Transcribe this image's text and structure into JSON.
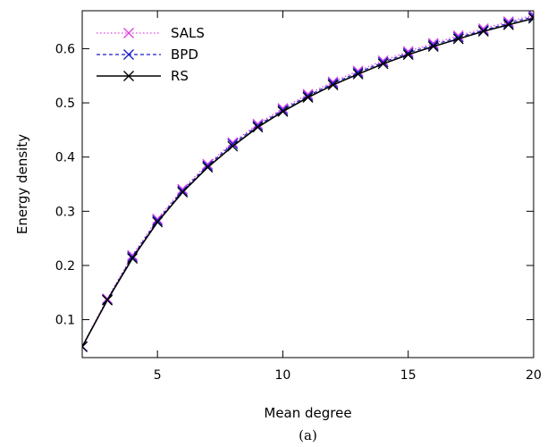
{
  "chart_data": {
    "type": "line",
    "title": "",
    "xlabel": "Mean degree",
    "ylabel": "Energy density",
    "caption": "(a)",
    "xlim": [
      2,
      20
    ],
    "ylim": [
      0.03,
      0.67
    ],
    "x_ticks": [
      5,
      10,
      15,
      20
    ],
    "y_ticks": [
      0.1,
      0.2,
      0.3,
      0.4,
      0.5,
      0.6
    ],
    "grid": false,
    "legend_position": "top-left",
    "x": [
      2,
      3,
      4,
      5,
      6,
      7,
      8,
      9,
      10,
      11,
      12,
      13,
      14,
      15,
      16,
      17,
      18,
      19,
      20
    ],
    "series": [
      {
        "name": "SALS",
        "color": "#e040e0",
        "line_style": "dotted",
        "marker": "x",
        "values": [
          0.051,
          0.139,
          0.219,
          0.286,
          0.341,
          0.387,
          0.427,
          0.461,
          0.49,
          0.516,
          0.539,
          0.559,
          0.578,
          0.595,
          0.61,
          0.624,
          0.637,
          0.65,
          0.662
        ]
      },
      {
        "name": "BPD",
        "color": "#1a1acc",
        "line_style": "dashed",
        "marker": "x",
        "values": [
          0.05,
          0.137,
          0.216,
          0.283,
          0.338,
          0.384,
          0.424,
          0.458,
          0.487,
          0.513,
          0.536,
          0.556,
          0.575,
          0.592,
          0.607,
          0.621,
          0.634,
          0.647,
          0.659
        ]
      },
      {
        "name": "RS",
        "color": "#000000",
        "line_style": "solid",
        "marker": "x",
        "values": [
          0.05,
          0.136,
          0.213,
          0.28,
          0.335,
          0.381,
          0.42,
          0.455,
          0.484,
          0.51,
          0.533,
          0.553,
          0.572,
          0.589,
          0.604,
          0.618,
          0.632,
          0.644,
          0.656
        ]
      }
    ]
  }
}
